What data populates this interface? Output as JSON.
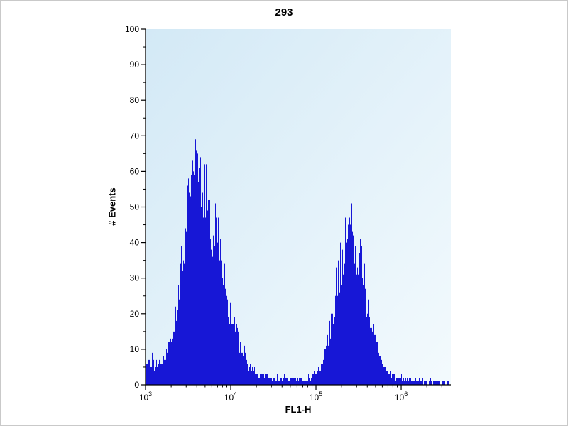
{
  "chart_data": {
    "type": "histogram",
    "title": "293",
    "xlabel": "FL1-H",
    "ylabel": "# Events",
    "x_scale": "log10",
    "x_min_log10": 3,
    "x_max_log10": 6.583,
    "ylim": [
      0,
      100
    ],
    "y_ticks": [
      0,
      10,
      20,
      30,
      40,
      50,
      60,
      70,
      80,
      90,
      100
    ],
    "x_ticks": [
      {
        "value": 1000,
        "label_base": "10",
        "label_exp": "3"
      },
      {
        "value": 10000,
        "label_base": "10",
        "label_exp": "4"
      },
      {
        "value": 100000,
        "label_base": "10",
        "label_exp": "5"
      },
      {
        "value": 1000000,
        "label_base": "10",
        "label_exp": "6"
      }
    ],
    "grid": false,
    "legend": false,
    "fill_color": "#1717d6",
    "axis_color": "#000000",
    "plot_bg_gradient": [
      "#d3e9f6",
      "#f3fafd"
    ],
    "baseline_events": 1.3,
    "noise_seed": 42,
    "peaks": [
      {
        "name": "negative-population",
        "center_log10": 3.6,
        "height_events": 58,
        "sigma_left": 0.17,
        "sigma_right": 0.27,
        "max_observed_events": 74
      },
      {
        "name": "positive-population",
        "center_log10": 5.4,
        "height_events": 42,
        "sigma_left": 0.16,
        "sigma_right": 0.18,
        "max_observed_events": 51
      },
      {
        "name": "left-edge-bump",
        "center_log10": 3.02,
        "height_events": 5,
        "sigma_left": 0.05,
        "sigma_right": 0.12
      }
    ]
  }
}
